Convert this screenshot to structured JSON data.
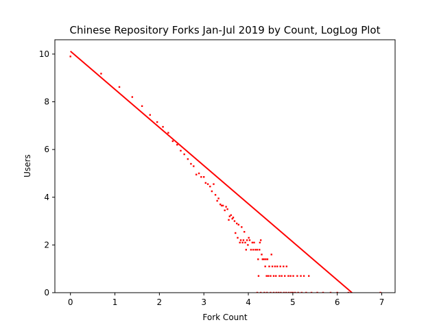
{
  "chart_data": {
    "type": "scatter",
    "title": "Chinese Repository Forks Jan-Jul 2019 by Count, LogLog Plot",
    "xlabel": "Fork Count",
    "ylabel": "Users",
    "xlim": [
      -0.35,
      7.3
    ],
    "ylim": [
      0,
      10.6
    ],
    "xticks": [
      "0",
      "1",
      "2",
      "3",
      "4",
      "5",
      "6",
      "7"
    ],
    "yticks": [
      "0",
      "2",
      "4",
      "6",
      "8",
      "10"
    ],
    "grid": false,
    "legend": "none",
    "color": "#ff0000",
    "fit_line": {
      "x": [
        0,
        6.33
      ],
      "y": [
        10.12,
        0
      ]
    },
    "points": [
      [
        0,
        9.9
      ],
      [
        0.69,
        9.18
      ],
      [
        1.1,
        8.62
      ],
      [
        1.39,
        8.2
      ],
      [
        1.61,
        7.82
      ],
      [
        1.79,
        7.45
      ],
      [
        1.95,
        7.15
      ],
      [
        2.08,
        6.95
      ],
      [
        2.2,
        6.7
      ],
      [
        2.3,
        6.35
      ],
      [
        2.4,
        6.2
      ],
      [
        2.48,
        5.95
      ],
      [
        2.56,
        5.8
      ],
      [
        2.64,
        5.6
      ],
      [
        2.71,
        5.4
      ],
      [
        2.77,
        5.3
      ],
      [
        2.83,
        4.95
      ],
      [
        2.89,
        5.0
      ],
      [
        2.94,
        4.85
      ],
      [
        3.0,
        4.85
      ],
      [
        3.04,
        4.6
      ],
      [
        3.09,
        4.55
      ],
      [
        3.14,
        4.45
      ],
      [
        3.18,
        4.25
      ],
      [
        3.22,
        4.55
      ],
      [
        3.26,
        4.1
      ],
      [
        3.3,
        3.85
      ],
      [
        3.33,
        3.95
      ],
      [
        3.37,
        3.7
      ],
      [
        3.4,
        3.65
      ],
      [
        3.43,
        3.65
      ],
      [
        3.47,
        3.45
      ],
      [
        3.5,
        3.6
      ],
      [
        3.53,
        3.5
      ],
      [
        3.56,
        3.05
      ],
      [
        3.58,
        3.2
      ],
      [
        3.61,
        3.25
      ],
      [
        3.64,
        3.1
      ],
      [
        3.66,
        3.15
      ],
      [
        3.69,
        3.0
      ],
      [
        3.71,
        2.5
      ],
      [
        3.74,
        2.9
      ],
      [
        3.76,
        2.3
      ],
      [
        3.78,
        2.85
      ],
      [
        3.81,
        2.1
      ],
      [
        3.83,
        2.2
      ],
      [
        3.85,
        2.75
      ],
      [
        3.87,
        2.1
      ],
      [
        3.89,
        2.2
      ],
      [
        3.91,
        2.55
      ],
      [
        3.93,
        2.1
      ],
      [
        3.95,
        1.8
      ],
      [
        3.97,
        2.2
      ],
      [
        3.99,
        2.0
      ],
      [
        4.01,
        2.3
      ],
      [
        4.03,
        2.2
      ],
      [
        4.06,
        1.8
      ],
      [
        4.09,
        2.1
      ],
      [
        4.11,
        1.8
      ],
      [
        4.13,
        2.1
      ],
      [
        4.16,
        1.8
      ],
      [
        4.2,
        1.8
      ],
      [
        4.22,
        1.4
      ],
      [
        4.23,
        0.7
      ],
      [
        4.25,
        1.8
      ],
      [
        4.26,
        2.1
      ],
      [
        4.28,
        2.2
      ],
      [
        4.3,
        1.6
      ],
      [
        4.32,
        1.4
      ],
      [
        4.35,
        1.4
      ],
      [
        4.38,
        1.1
      ],
      [
        4.39,
        1.4
      ],
      [
        4.41,
        0.7
      ],
      [
        4.43,
        1.4
      ],
      [
        4.45,
        0.7
      ],
      [
        4.47,
        1.1
      ],
      [
        4.5,
        0.7
      ],
      [
        4.52,
        1.6
      ],
      [
        4.54,
        1.1
      ],
      [
        4.57,
        0.7
      ],
      [
        4.6,
        1.1
      ],
      [
        4.62,
        0.7
      ],
      [
        4.65,
        1.1
      ],
      [
        4.7,
        0.7
      ],
      [
        4.72,
        1.1
      ],
      [
        4.75,
        0.7
      ],
      [
        4.79,
        1.1
      ],
      [
        4.82,
        0.7
      ],
      [
        4.86,
        1.1
      ],
      [
        4.9,
        0.7
      ],
      [
        4.95,
        0.7
      ],
      [
        5.01,
        0.7
      ],
      [
        5.1,
        0.7
      ],
      [
        5.18,
        0.7
      ],
      [
        5.25,
        0.7
      ],
      [
        5.36,
        0.7
      ],
      [
        4.2,
        0
      ],
      [
        4.28,
        0
      ],
      [
        4.36,
        0
      ],
      [
        4.42,
        0
      ],
      [
        4.5,
        0
      ],
      [
        4.57,
        0
      ],
      [
        4.63,
        0
      ],
      [
        4.68,
        0
      ],
      [
        4.73,
        0
      ],
      [
        4.8,
        0
      ],
      [
        4.85,
        0
      ],
      [
        4.91,
        0
      ],
      [
        4.96,
        0
      ],
      [
        5.0,
        0
      ],
      [
        5.05,
        0
      ],
      [
        5.12,
        0
      ],
      [
        5.2,
        0
      ],
      [
        5.3,
        0
      ],
      [
        5.42,
        0
      ],
      [
        5.55,
        0
      ],
      [
        5.68,
        0
      ],
      [
        5.85,
        0
      ],
      [
        6.0,
        0
      ],
      [
        6.25,
        0
      ],
      [
        6.97,
        0
      ]
    ]
  }
}
